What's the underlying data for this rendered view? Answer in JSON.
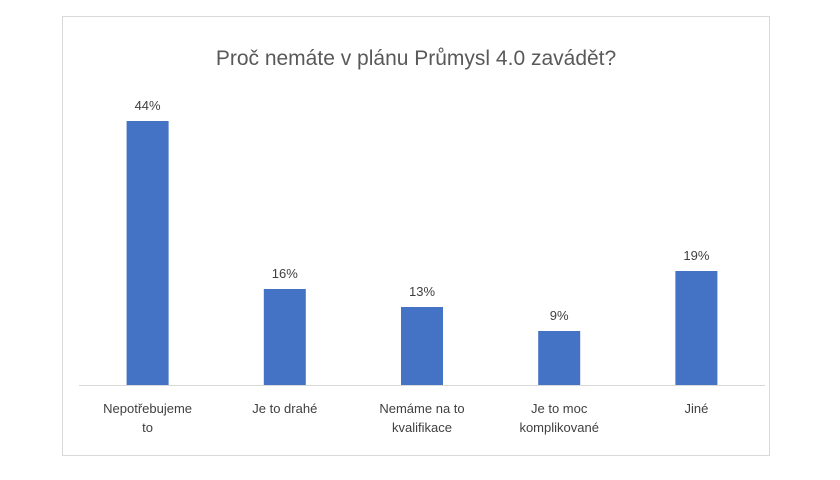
{
  "chart_data": {
    "type": "bar",
    "title": "Proč nemáte v plánu Průmysl 4.0 zavádět?",
    "xlabel": "",
    "ylabel": "",
    "categories": [
      [
        "Nepotřebujeme",
        "to"
      ],
      [
        "Je to drahé"
      ],
      [
        "Nemáme na to",
        "kvalifikace"
      ],
      [
        "Je to moc",
        "komplikované"
      ],
      [
        "Jiné"
      ]
    ],
    "values": [
      44,
      16,
      13,
      9,
      19
    ],
    "data_labels": [
      "44%",
      "16%",
      "13%",
      "9%",
      "19%"
    ],
    "ylim": [
      0,
      50
    ],
    "grid": false,
    "legend": "none",
    "bar_color": "#4472c4",
    "axis_color": "#d9d9d9"
  }
}
